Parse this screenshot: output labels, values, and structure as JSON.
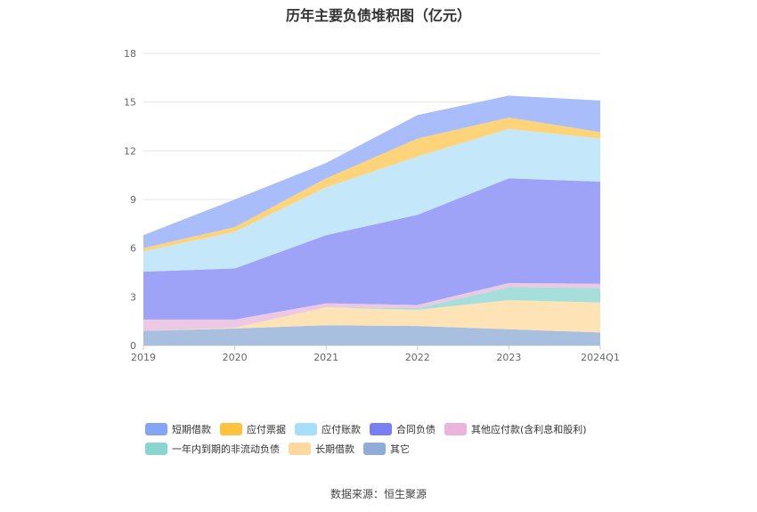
{
  "title": "历年主要负债堆积图（亿元）",
  "source": "数据来源：恒生聚源",
  "chart_data": {
    "type": "area",
    "stacked": true,
    "categories": [
      "2019",
      "2020",
      "2021",
      "2022",
      "2023",
      "2024Q1"
    ],
    "ylim": [
      0,
      18
    ],
    "yticks": [
      0,
      3,
      6,
      9,
      12,
      15,
      18
    ],
    "grid": true,
    "legend_position": "bottom",
    "series": [
      {
        "name": "其它",
        "color": "#a9bfe0",
        "values": [
          0.9,
          1.05,
          1.25,
          1.2,
          1.0,
          0.8
        ]
      },
      {
        "name": "长期借款",
        "color": "#fde3b5",
        "values": [
          0.0,
          0.05,
          1.1,
          1.0,
          1.8,
          1.85
        ]
      },
      {
        "name": "一年内到期的非流动负债",
        "color": "#a6dedb",
        "values": [
          0.0,
          0.0,
          0.0,
          0.1,
          0.8,
          0.9
        ]
      },
      {
        "name": "其他应付款(含利息和股利)",
        "color": "#ecc8e2",
        "values": [
          0.7,
          0.5,
          0.25,
          0.2,
          0.25,
          0.25
        ]
      },
      {
        "name": "合同负债",
        "color": "#9ea3f8",
        "values": [
          2.95,
          3.15,
          4.2,
          5.55,
          6.45,
          6.3
        ]
      },
      {
        "name": "应付账款",
        "color": "#c4e8fa",
        "values": [
          1.25,
          2.25,
          2.95,
          3.6,
          3.05,
          2.65
        ]
      },
      {
        "name": "应付票据",
        "color": "#fdd47a",
        "values": [
          0.2,
          0.3,
          0.55,
          1.1,
          0.7,
          0.4
        ]
      },
      {
        "name": "短期借款",
        "color": "#a8bdf9",
        "values": [
          0.8,
          1.7,
          0.95,
          1.45,
          1.35,
          1.95
        ]
      }
    ]
  },
  "legend": {
    "rows": [
      [
        {
          "name": "短期借款",
          "color": "#84a5f6"
        },
        {
          "name": "应付票据",
          "color": "#fdc23e"
        },
        {
          "name": "应付账款",
          "color": "#a7dffb"
        },
        {
          "name": "合同负债",
          "color": "#7a7ef3"
        },
        {
          "name": "其他应付款(含利息和股利)",
          "color": "#ebb4db"
        }
      ],
      [
        {
          "name": "一年内到期的非流动负债",
          "color": "#88d5d2"
        },
        {
          "name": "长期借款",
          "color": "#fdd9a0"
        },
        {
          "name": "其它",
          "color": "#90acd9"
        }
      ]
    ]
  }
}
